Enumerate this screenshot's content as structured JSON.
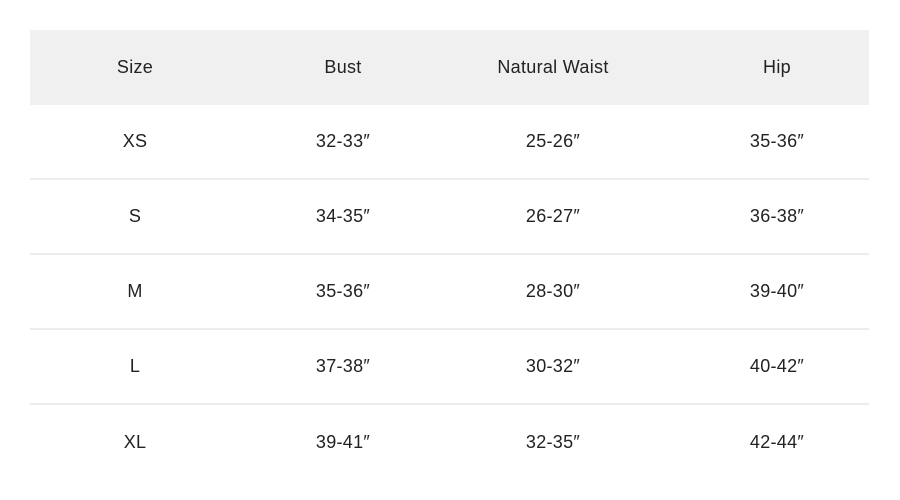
{
  "size_chart": {
    "headers": [
      "Size",
      "Bust",
      "Natural Waist",
      "Hip"
    ],
    "rows": [
      [
        "XS",
        "32-33″",
        "25-26″",
        "35-36″"
      ],
      [
        "S",
        "34-35″",
        "26-27″",
        "36-38″"
      ],
      [
        "M",
        "35-36″",
        "28-30″",
        "39-40″"
      ],
      [
        "L",
        "37-38″",
        "30-32″",
        "40-42″"
      ],
      [
        "XL",
        "39-41″",
        "32-35″",
        "42-44″"
      ]
    ]
  },
  "colors": {
    "header_bg": "#f0f0f0",
    "divider": "#ececec",
    "text": "#222222"
  }
}
